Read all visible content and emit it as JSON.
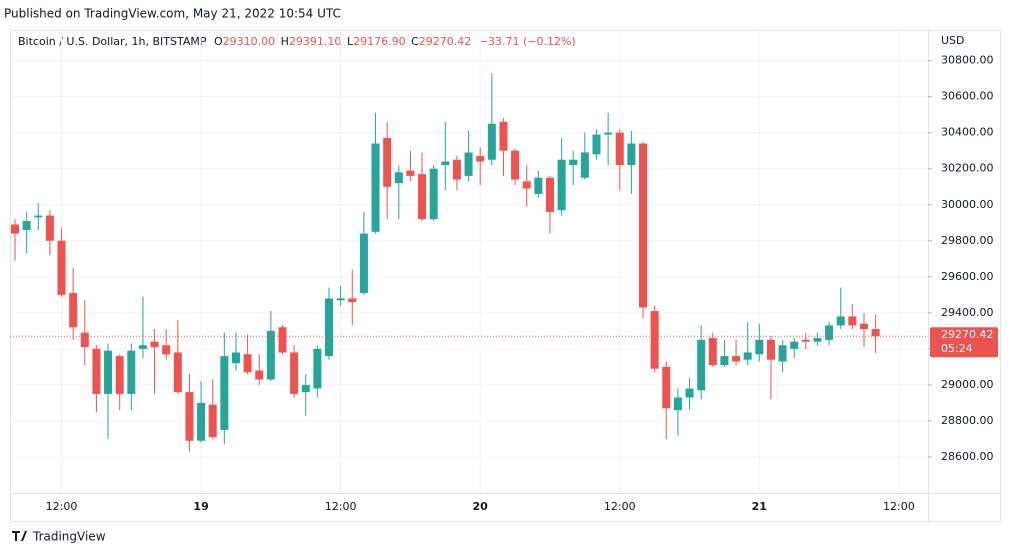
{
  "published": "Published on TradingView.com, May 21, 2022 10:54 UTC",
  "brand": "TradingView",
  "chart_data": {
    "type": "candlestick",
    "title": "Bitcoin / U.S. Dollar, 1h, BITSTAMP",
    "ohlc_header": {
      "open_label": "O",
      "open": "29310.00",
      "high_label": "H",
      "high": "29391.10",
      "low_label": "L",
      "low": "29176.90",
      "close_label": "C",
      "close": "29270.42",
      "change": "−33.71 (−0.12%)"
    },
    "y_axis_label": "USD",
    "last_price_label": "29270.42",
    "countdown": "05:24",
    "up_color": "#26a69a",
    "down_color": "#ef5350",
    "grid": true,
    "categories": [
      null,
      null,
      null,
      null,
      "12:00",
      null,
      null,
      null,
      null,
      null,
      null,
      null,
      null,
      null,
      null,
      null,
      "19",
      null,
      null,
      null,
      null,
      null,
      null,
      null,
      null,
      null,
      null,
      null,
      "12:00",
      null,
      null,
      null,
      null,
      null,
      null,
      null,
      null,
      null,
      null,
      null,
      "20",
      null,
      null,
      null,
      null,
      null,
      null,
      null,
      null,
      null,
      null,
      null,
      "12:00",
      null,
      null,
      null,
      null,
      null,
      null,
      null,
      null,
      null,
      null,
      null,
      "21",
      null,
      null,
      null,
      null,
      null,
      null,
      null,
      null,
      null,
      null,
      null,
      "12:00"
    ],
    "open": [
      29890,
      29860,
      29930,
      29940,
      29800,
      29510,
      29290,
      29200,
      28950,
      29160,
      28950,
      29200,
      29240,
      29220,
      29180,
      28960,
      28690,
      28890,
      28750,
      29120,
      29170,
      29080,
      29030,
      29320,
      29180,
      28960,
      28980,
      29160,
      29470,
      29480,
      29510,
      29850,
      30370,
      30120,
      30190,
      30170,
      29920,
      30220,
      30250,
      30160,
      30270,
      30250,
      30460,
      30300,
      30130,
      30060,
      30150,
      29970,
      30220,
      30150,
      30280,
      30390,
      30400,
      30220,
      30340,
      29410,
      29100,
      28860,
      28930,
      28970,
      29260,
      29110,
      29160,
      29140,
      29170,
      29250,
      29130,
      29200,
      29250,
      29240,
      29250,
      29330,
      29380,
      29340,
      29310,
      null,
      null
    ],
    "high": [
      29920,
      29960,
      30010,
      29970,
      29870,
      29650,
      29470,
      29220,
      29230,
      29170,
      29230,
      29490,
      29310,
      29310,
      29360,
      29060,
      29020,
      29030,
      29290,
      29290,
      29280,
      29170,
      29410,
      29330,
      29220,
      29060,
      29220,
      29540,
      29550,
      29640,
      29960,
      30510,
      30460,
      30220,
      30300,
      30290,
      30220,
      30460,
      30270,
      30410,
      30320,
      30730,
      30480,
      30310,
      30220,
      30190,
      30160,
      30370,
      30300,
      30400,
      30420,
      30510,
      30420,
      30410,
      30350,
      29440,
      29130,
      28980,
      29040,
      29330,
      29290,
      29250,
      29250,
      29350,
      29340,
      29270,
      29250,
      29260,
      29290,
      29290,
      29350,
      29540,
      29450,
      29400,
      29391.1,
      null,
      null
    ],
    "low": [
      29690,
      29730,
      29860,
      29720,
      29490,
      29250,
      29110,
      28850,
      28700,
      28860,
      28860,
      29150,
      28950,
      29140,
      28950,
      28630,
      28680,
      28700,
      28670,
      29080,
      29060,
      29000,
      29020,
      29170,
      28930,
      28830,
      28930,
      29140,
      29440,
      29330,
      29500,
      29840,
      29920,
      29920,
      30130,
      29910,
      29910,
      30080,
      30080,
      30130,
      30110,
      30220,
      30160,
      30110,
      29990,
      30040,
      29840,
      29940,
      30110,
      30140,
      30250,
      30220,
      30080,
      30060,
      29370,
      29070,
      28700,
      28720,
      28860,
      28920,
      29100,
      29100,
      29110,
      29110,
      29130,
      28920,
      29070,
      29150,
      29200,
      29220,
      29220,
      29310,
      29310,
      29210,
      29176.9,
      null,
      null
    ],
    "close": [
      29840,
      29910,
      29940,
      29800,
      29500,
      29320,
      29210,
      28950,
      29190,
      28950,
      29190,
      29220,
      29210,
      29170,
      28960,
      28690,
      28900,
      28710,
      29160,
      29180,
      29070,
      29030,
      29300,
      29180,
      28950,
      29000,
      29200,
      29480,
      29480,
      29460,
      29840,
      30340,
      30100,
      30180,
      30160,
      29920,
      30200,
      30240,
      30140,
      30290,
      30240,
      30450,
      30300,
      30140,
      30090,
      30150,
      29960,
      30250,
      30250,
      30290,
      30390,
      30400,
      30220,
      30340,
      29430,
      29090,
      28870,
      28930,
      28980,
      29250,
      29110,
      29160,
      29130,
      29180,
      29250,
      29140,
      29220,
      29240,
      29240,
      29260,
      29330,
      29380,
      29330,
      29310,
      29270.42,
      null,
      null
    ],
    "ylim": [
      28400,
      30970
    ],
    "yticks": [
      {
        "value": 28600,
        "label": "28600.00"
      },
      {
        "value": 28800,
        "label": "28800.00"
      },
      {
        "value": 29000,
        "label": "29000.00"
      },
      {
        "value": 29200,
        "label": "29200.00"
      },
      {
        "value": 29400,
        "label": "29400.00"
      },
      {
        "value": 29600,
        "label": "29600.00"
      },
      {
        "value": 29800,
        "label": "29800.00"
      },
      {
        "value": 30000,
        "label": "30000.00"
      },
      {
        "value": 30200,
        "label": "30200.00"
      },
      {
        "value": 30400,
        "label": "30400.00"
      },
      {
        "value": 30600,
        "label": "30600.00"
      },
      {
        "value": 30800,
        "label": "30800.00"
      }
    ]
  }
}
